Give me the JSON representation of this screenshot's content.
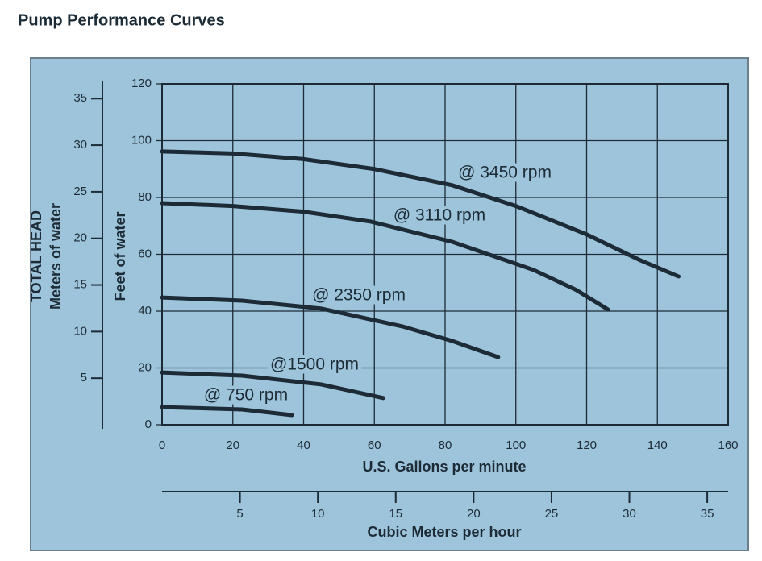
{
  "chart_data": {
    "type": "line",
    "title": "Pump Performance Curves",
    "xlabel": "U.S. Gallons per minute",
    "x2label": "Cubic Meters per hour",
    "ylabel": "Feet of water",
    "y2label": "Meters of water",
    "y_group_label": "TOTAL HEAD",
    "xlim": [
      0,
      160
    ],
    "xticks": [
      0,
      20,
      40,
      60,
      80,
      100,
      120,
      140,
      160
    ],
    "ylim": [
      0,
      120
    ],
    "yticks": [
      0,
      20,
      40,
      60,
      80,
      100,
      120
    ],
    "y2lim": [
      0,
      36.58
    ],
    "y2ticks": [
      5,
      10,
      15,
      20,
      25,
      30,
      35
    ],
    "x2lim": [
      0,
      36.34
    ],
    "x2ticks": [
      5,
      10,
      15,
      20,
      25,
      30,
      35
    ],
    "grid": true,
    "line_color": "#1c2b36",
    "series": [
      {
        "name": "@ 3450 rpm",
        "x": [
          0,
          20,
          40,
          60,
          82,
          100,
          120,
          135,
          146
        ],
        "values": [
          96.2,
          95.5,
          93.5,
          90,
          84.3,
          77,
          67,
          58,
          52.2
        ]
      },
      {
        "name": "@ 3110 rpm",
        "x": [
          0,
          20,
          40,
          59,
          82,
          105,
          117,
          126
        ],
        "values": [
          78,
          77,
          75,
          71.5,
          64.4,
          54.5,
          47.5,
          40.6
        ]
      },
      {
        "name": "@ 2350 rpm",
        "x": [
          0,
          22.6,
          45,
          68,
          82,
          95
        ],
        "values": [
          44.8,
          43.7,
          40.9,
          34.6,
          29.5,
          23.8
        ]
      },
      {
        "name": "@1500 rpm",
        "x": [
          0,
          22.6,
          45,
          62.5
        ],
        "values": [
          18.4,
          17.3,
          14.2,
          9.4
        ]
      },
      {
        "name": "@ 750 rpm",
        "x": [
          0,
          22.6,
          36.7
        ],
        "values": [
          6.2,
          5.4,
          3.4
        ]
      }
    ]
  }
}
